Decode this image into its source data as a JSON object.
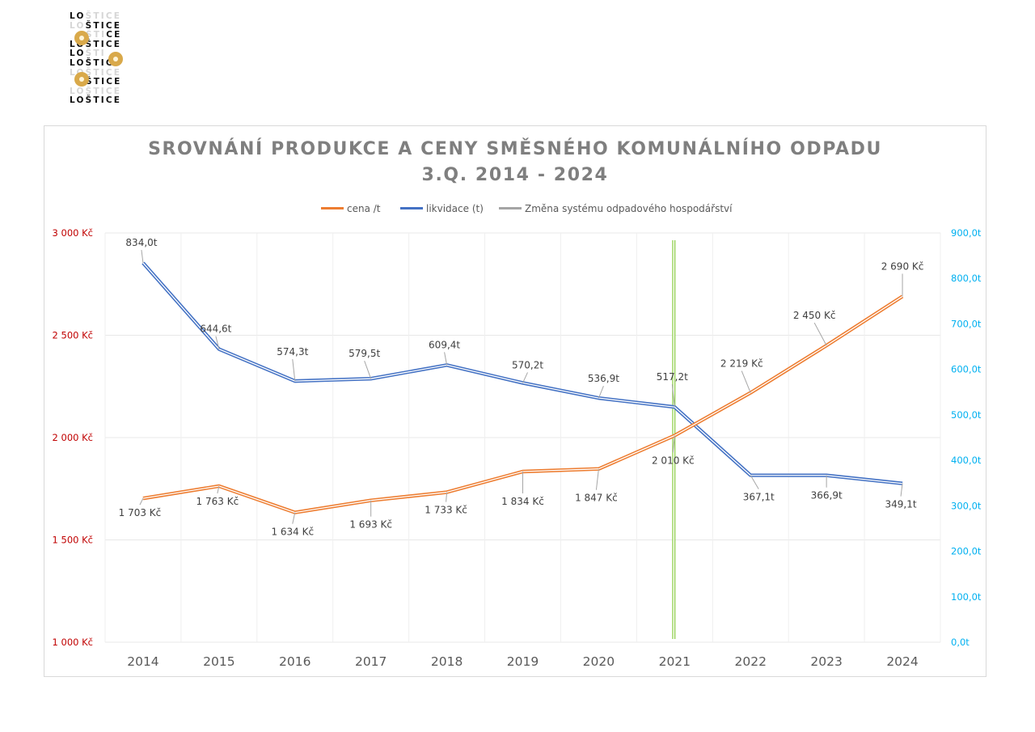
{
  "logo": {
    "lines": [
      [
        "LO",
        "ŠTICE"
      ],
      [
        "LO",
        "ŠTICE"
      ],
      [
        "",
        "ŠTI",
        "CE"
      ],
      [
        "LO",
        "ŠTICE"
      ],
      [
        "LO",
        "ŠTI"
      ],
      [
        "LO",
        "ŠTI",
        "CE"
      ],
      [
        "LO",
        "ŠTICE"
      ],
      [
        "",
        "ŠTI",
        "CE"
      ],
      [
        "LO",
        "ŠTICE"
      ],
      [
        "LO",
        "ŠTICE"
      ]
    ]
  },
  "colors": {
    "price": "#ed7d31",
    "volume": "#4472c4",
    "change": "#a5a5a5",
    "change_line": "#92d050",
    "left_axis": "#c00000",
    "right_axis": "#00b0f0",
    "title": "#7f7f7f"
  },
  "chart_data": {
    "type": "line",
    "title_line1": "SROVNÁNÍ PRODUKCE A CENY SMĚSNÉHO KOMUNÁLNÍHO ODPADU",
    "title_line2": "3.Q.  2014 - 2024",
    "categories": [
      "2014",
      "2015",
      "2016",
      "2017",
      "2018",
      "2019",
      "2020",
      "2021",
      "2022",
      "2023",
      "2024"
    ],
    "y_left": {
      "min": 1000,
      "max": 3000,
      "ticks": [
        {
          "value": 3000,
          "label": "3 000 Kč"
        },
        {
          "value": 2500,
          "label": "2 500 Kč"
        },
        {
          "value": 2000,
          "label": "2 000 Kč"
        },
        {
          "value": 1500,
          "label": "1 500 Kč"
        },
        {
          "value": 1000,
          "label": "1 000 Kč"
        }
      ]
    },
    "y_right": {
      "min": 0,
      "max": 900,
      "ticks": [
        {
          "value": 900,
          "label": "900,0t"
        },
        {
          "value": 800,
          "label": "800,0t"
        },
        {
          "value": 700,
          "label": "700,0t"
        },
        {
          "value": 600,
          "label": "600,0t"
        },
        {
          "value": 500,
          "label": "500,0t"
        },
        {
          "value": 400,
          "label": "400,0t"
        },
        {
          "value": 300,
          "label": "300,0t"
        },
        {
          "value": 200,
          "label": "200,0t"
        },
        {
          "value": 100,
          "label": "100,0t"
        },
        {
          "value": 0,
          "label": "0,0t"
        }
      ]
    },
    "series": [
      {
        "name": "cena /t",
        "axis": "left",
        "values": [
          1703,
          1763,
          1634,
          1693,
          1733,
          1834,
          1847,
          2010,
          2219,
          2450,
          2690
        ],
        "labels": [
          "1 703 Kč",
          "1 763 Kč",
          "1 634 Kč",
          "1 693 Kč",
          "1 733 Kč",
          "1 834 Kč",
          "1 847 Kč",
          "2 010 Kč",
          "2 219 Kč",
          "2 450 Kč",
          "2 690 Kč"
        ]
      },
      {
        "name": "likvidace (t)",
        "axis": "right",
        "values": [
          834.0,
          644.6,
          574.3,
          579.5,
          609.4,
          570.2,
          536.9,
          517.2,
          367.1,
          366.9,
          349.1
        ],
        "labels": [
          "834,0t",
          "644,6t",
          "574,3t",
          "579,5t",
          "609,4t",
          "570,2t",
          "536,9t",
          "517,2t",
          "367,1t",
          "366,9t",
          "349,1t"
        ]
      },
      {
        "name": "Změna systému odpadového hospodářství",
        "type": "vertical-marker",
        "at_category": "2021"
      }
    ],
    "legend_position": "top-center",
    "grid": true
  }
}
